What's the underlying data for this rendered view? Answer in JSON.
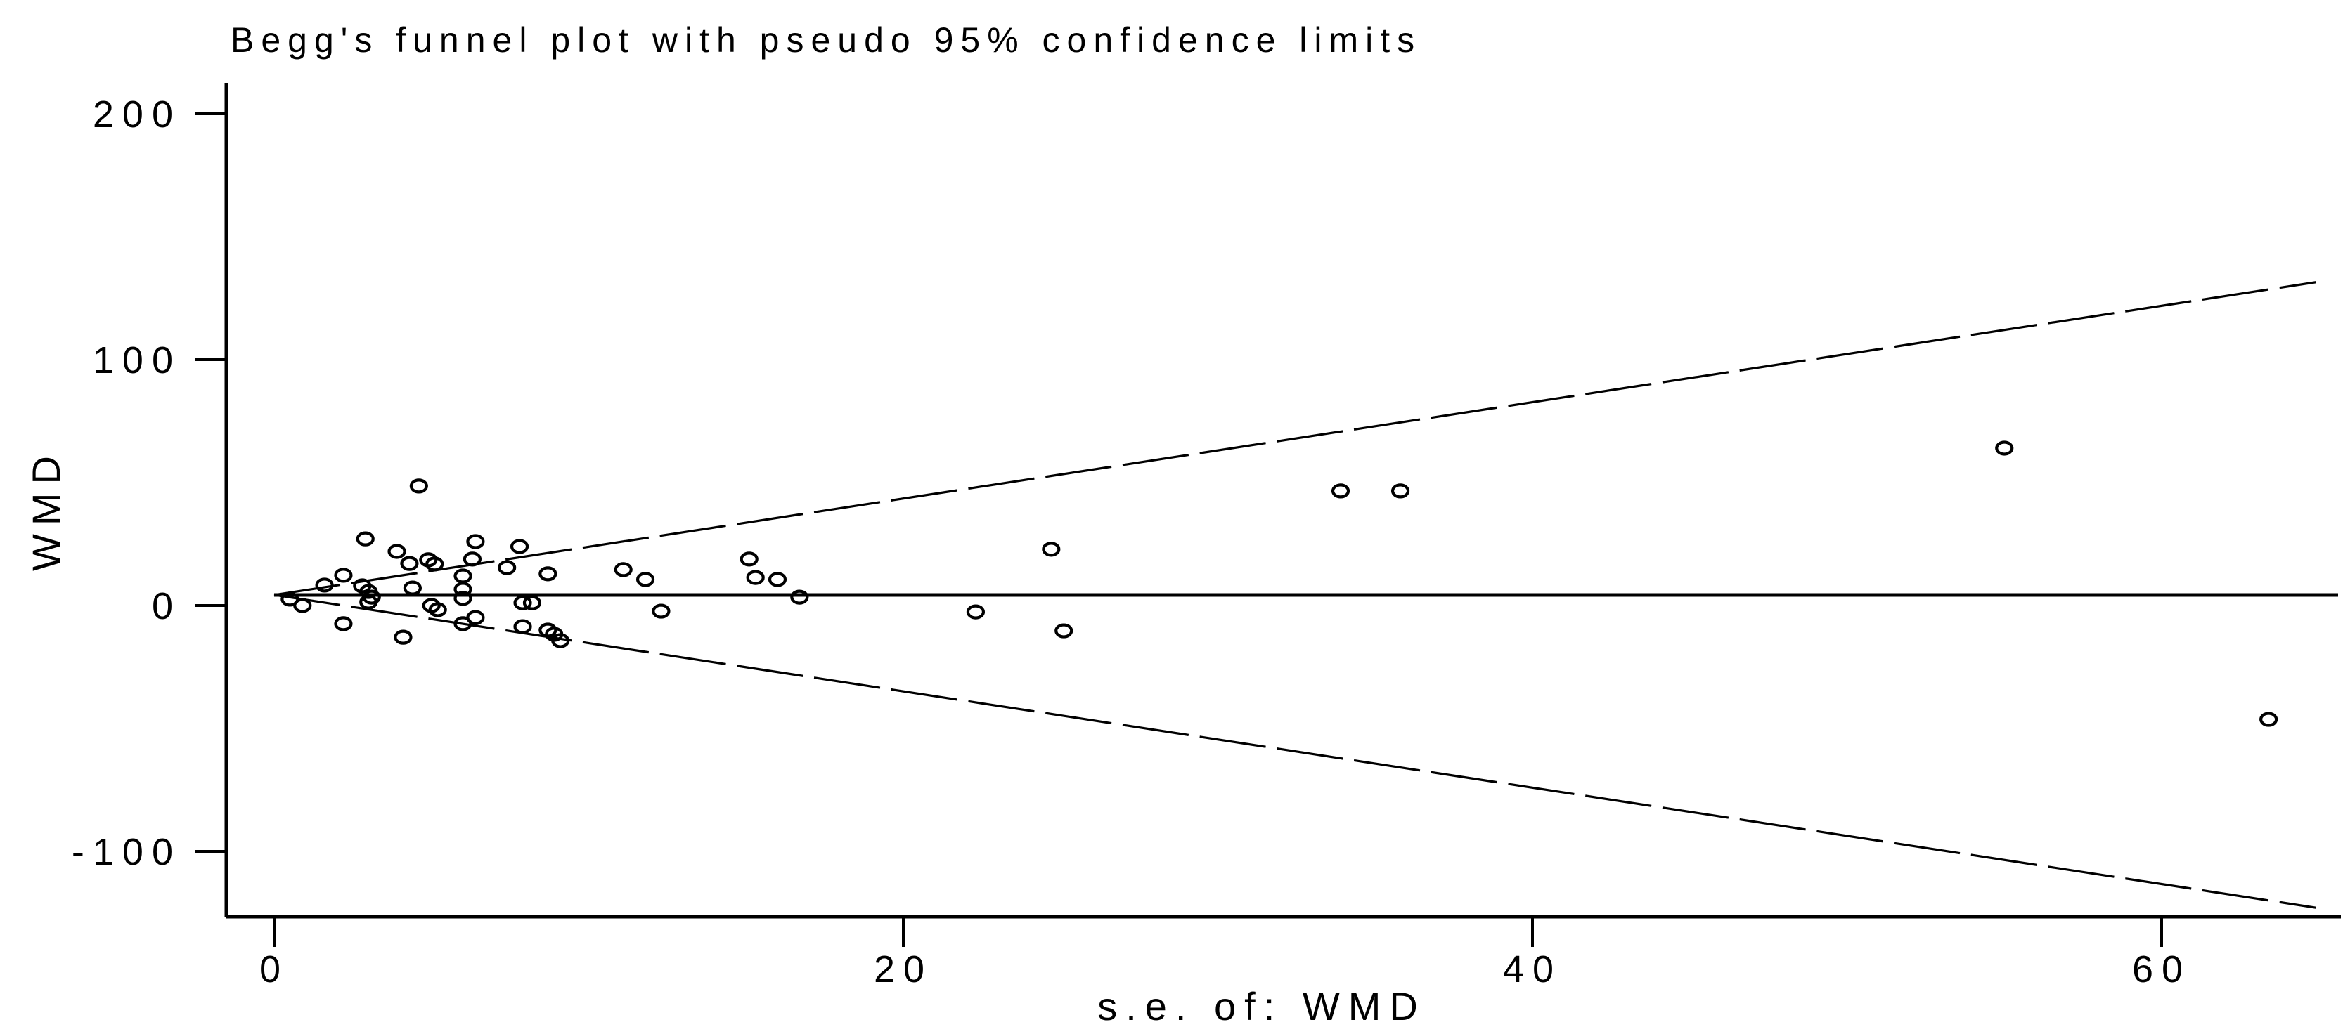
{
  "window": {
    "background_color": "#ffffff",
    "ink_color": "#000000"
  },
  "chart_data": {
    "type": "scatter",
    "subtype": "beggs-funnel-plot",
    "title": "Begg's funnel plot with pseudo 95% confidence limits",
    "xlabel": "s.e. of: WMD",
    "ylabel": "WMD",
    "x_ticks": [
      0,
      20,
      40,
      60
    ],
    "y_ticks": [
      200,
      100,
      0,
      -100
    ],
    "xlim": [
      0,
      65.7
    ],
    "ylim": [
      -126.5,
      212.5
    ],
    "grid": "off",
    "legend": "none",
    "pooled_estimate_wmd": 4.3,
    "z_multiplier": 1.96,
    "funnel_se_max": 64.9,
    "marker": "hollow-circle",
    "points": [
      {
        "se": 0.5,
        "wmd": 2.6
      },
      {
        "se": 0.9,
        "wmd": 0.0
      },
      {
        "se": 1.6,
        "wmd": 8.3
      },
      {
        "se": 2.2,
        "wmd": 12.3
      },
      {
        "se": 2.2,
        "wmd": -7.4
      },
      {
        "se": 2.8,
        "wmd": 8.0
      },
      {
        "se": 2.9,
        "wmd": 27.1
      },
      {
        "se": 3.0,
        "wmd": 5.7
      },
      {
        "se": 3.0,
        "wmd": 1.4
      },
      {
        "se": 3.1,
        "wmd": 3.4
      },
      {
        "se": 3.9,
        "wmd": 22.0
      },
      {
        "se": 4.1,
        "wmd": -12.9
      },
      {
        "se": 4.3,
        "wmd": 17.1
      },
      {
        "se": 4.4,
        "wmd": 7.1
      },
      {
        "se": 4.6,
        "wmd": 48.6
      },
      {
        "se": 4.9,
        "wmd": 18.6
      },
      {
        "se": 5.1,
        "wmd": 16.9
      },
      {
        "se": 5.0,
        "wmd": 0.0
      },
      {
        "se": 5.2,
        "wmd": -1.7
      },
      {
        "se": 6.0,
        "wmd": 12.0
      },
      {
        "se": 6.0,
        "wmd": 6.6
      },
      {
        "se": 6.0,
        "wmd": 2.9
      },
      {
        "se": 6.0,
        "wmd": -7.4
      },
      {
        "se": 6.3,
        "wmd": 18.9
      },
      {
        "se": 6.4,
        "wmd": 26.0
      },
      {
        "se": 6.4,
        "wmd": -4.9
      },
      {
        "se": 7.4,
        "wmd": 15.4
      },
      {
        "se": 7.8,
        "wmd": 24.0
      },
      {
        "se": 7.9,
        "wmd": 1.1
      },
      {
        "se": 8.2,
        "wmd": 1.1
      },
      {
        "se": 7.9,
        "wmd": -8.6
      },
      {
        "se": 8.7,
        "wmd": 12.9
      },
      {
        "se": 8.7,
        "wmd": -10.0
      },
      {
        "se": 8.9,
        "wmd": -11.7
      },
      {
        "se": 9.1,
        "wmd": -14.3
      },
      {
        "se": 11.1,
        "wmd": 14.6
      },
      {
        "se": 11.8,
        "wmd": 10.6
      },
      {
        "se": 12.3,
        "wmd": -2.3
      },
      {
        "se": 15.1,
        "wmd": 18.9
      },
      {
        "se": 15.3,
        "wmd": 11.4
      },
      {
        "se": 16.0,
        "wmd": 10.6
      },
      {
        "se": 16.7,
        "wmd": 3.4
      },
      {
        "se": 22.3,
        "wmd": -2.6
      },
      {
        "se": 24.7,
        "wmd": 22.9
      },
      {
        "se": 25.1,
        "wmd": -10.3
      },
      {
        "se": 33.9,
        "wmd": 46.6
      },
      {
        "se": 35.8,
        "wmd": 46.6
      },
      {
        "se": 55.0,
        "wmd": 64.0
      },
      {
        "se": 63.4,
        "wmd": -46.3
      }
    ]
  }
}
